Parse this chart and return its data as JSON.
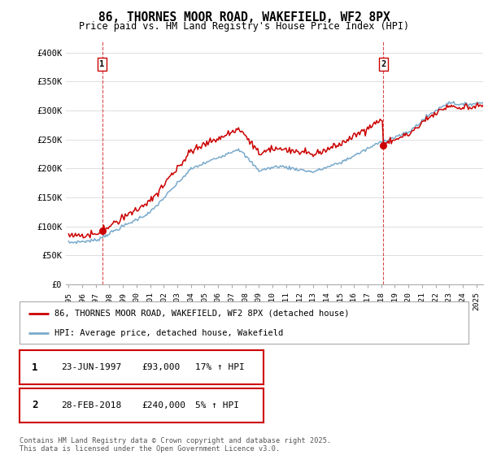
{
  "title": "86, THORNES MOOR ROAD, WAKEFIELD, WF2 8PX",
  "subtitle": "Price paid vs. HM Land Registry's House Price Index (HPI)",
  "legend_line1": "86, THORNES MOOR ROAD, WAKEFIELD, WF2 8PX (detached house)",
  "legend_line2": "HPI: Average price, detached house, Wakefield",
  "transaction1_date": "23-JUN-1997",
  "transaction1_price": "£93,000",
  "transaction1_hpi": "17% ↑ HPI",
  "transaction2_date": "28-FEB-2018",
  "transaction2_price": "£240,000",
  "transaction2_hpi": "5% ↑ HPI",
  "footer": "Contains HM Land Registry data © Crown copyright and database right 2025.\nThis data is licensed under the Open Government Licence v3.0.",
  "price_line_color": "#cc0000",
  "hpi_line_color": "#7aaacc",
  "background_color": "#ffffff",
  "grid_color": "#dddddd",
  "ylim": [
    0,
    420000
  ],
  "yticks": [
    0,
    50000,
    100000,
    150000,
    200000,
    250000,
    300000,
    350000,
    400000
  ],
  "ytick_labels": [
    "£0",
    "£50K",
    "£100K",
    "£150K",
    "£200K",
    "£250K",
    "£300K",
    "£350K",
    "£400K"
  ],
  "marker1_x": 1997.47,
  "marker1_y": 93000,
  "marker2_x": 2018.16,
  "marker2_y": 240000,
  "vline1_x": 1997.47,
  "vline2_x": 2018.16,
  "xlim_left": 1994.8,
  "xlim_right": 2025.5
}
